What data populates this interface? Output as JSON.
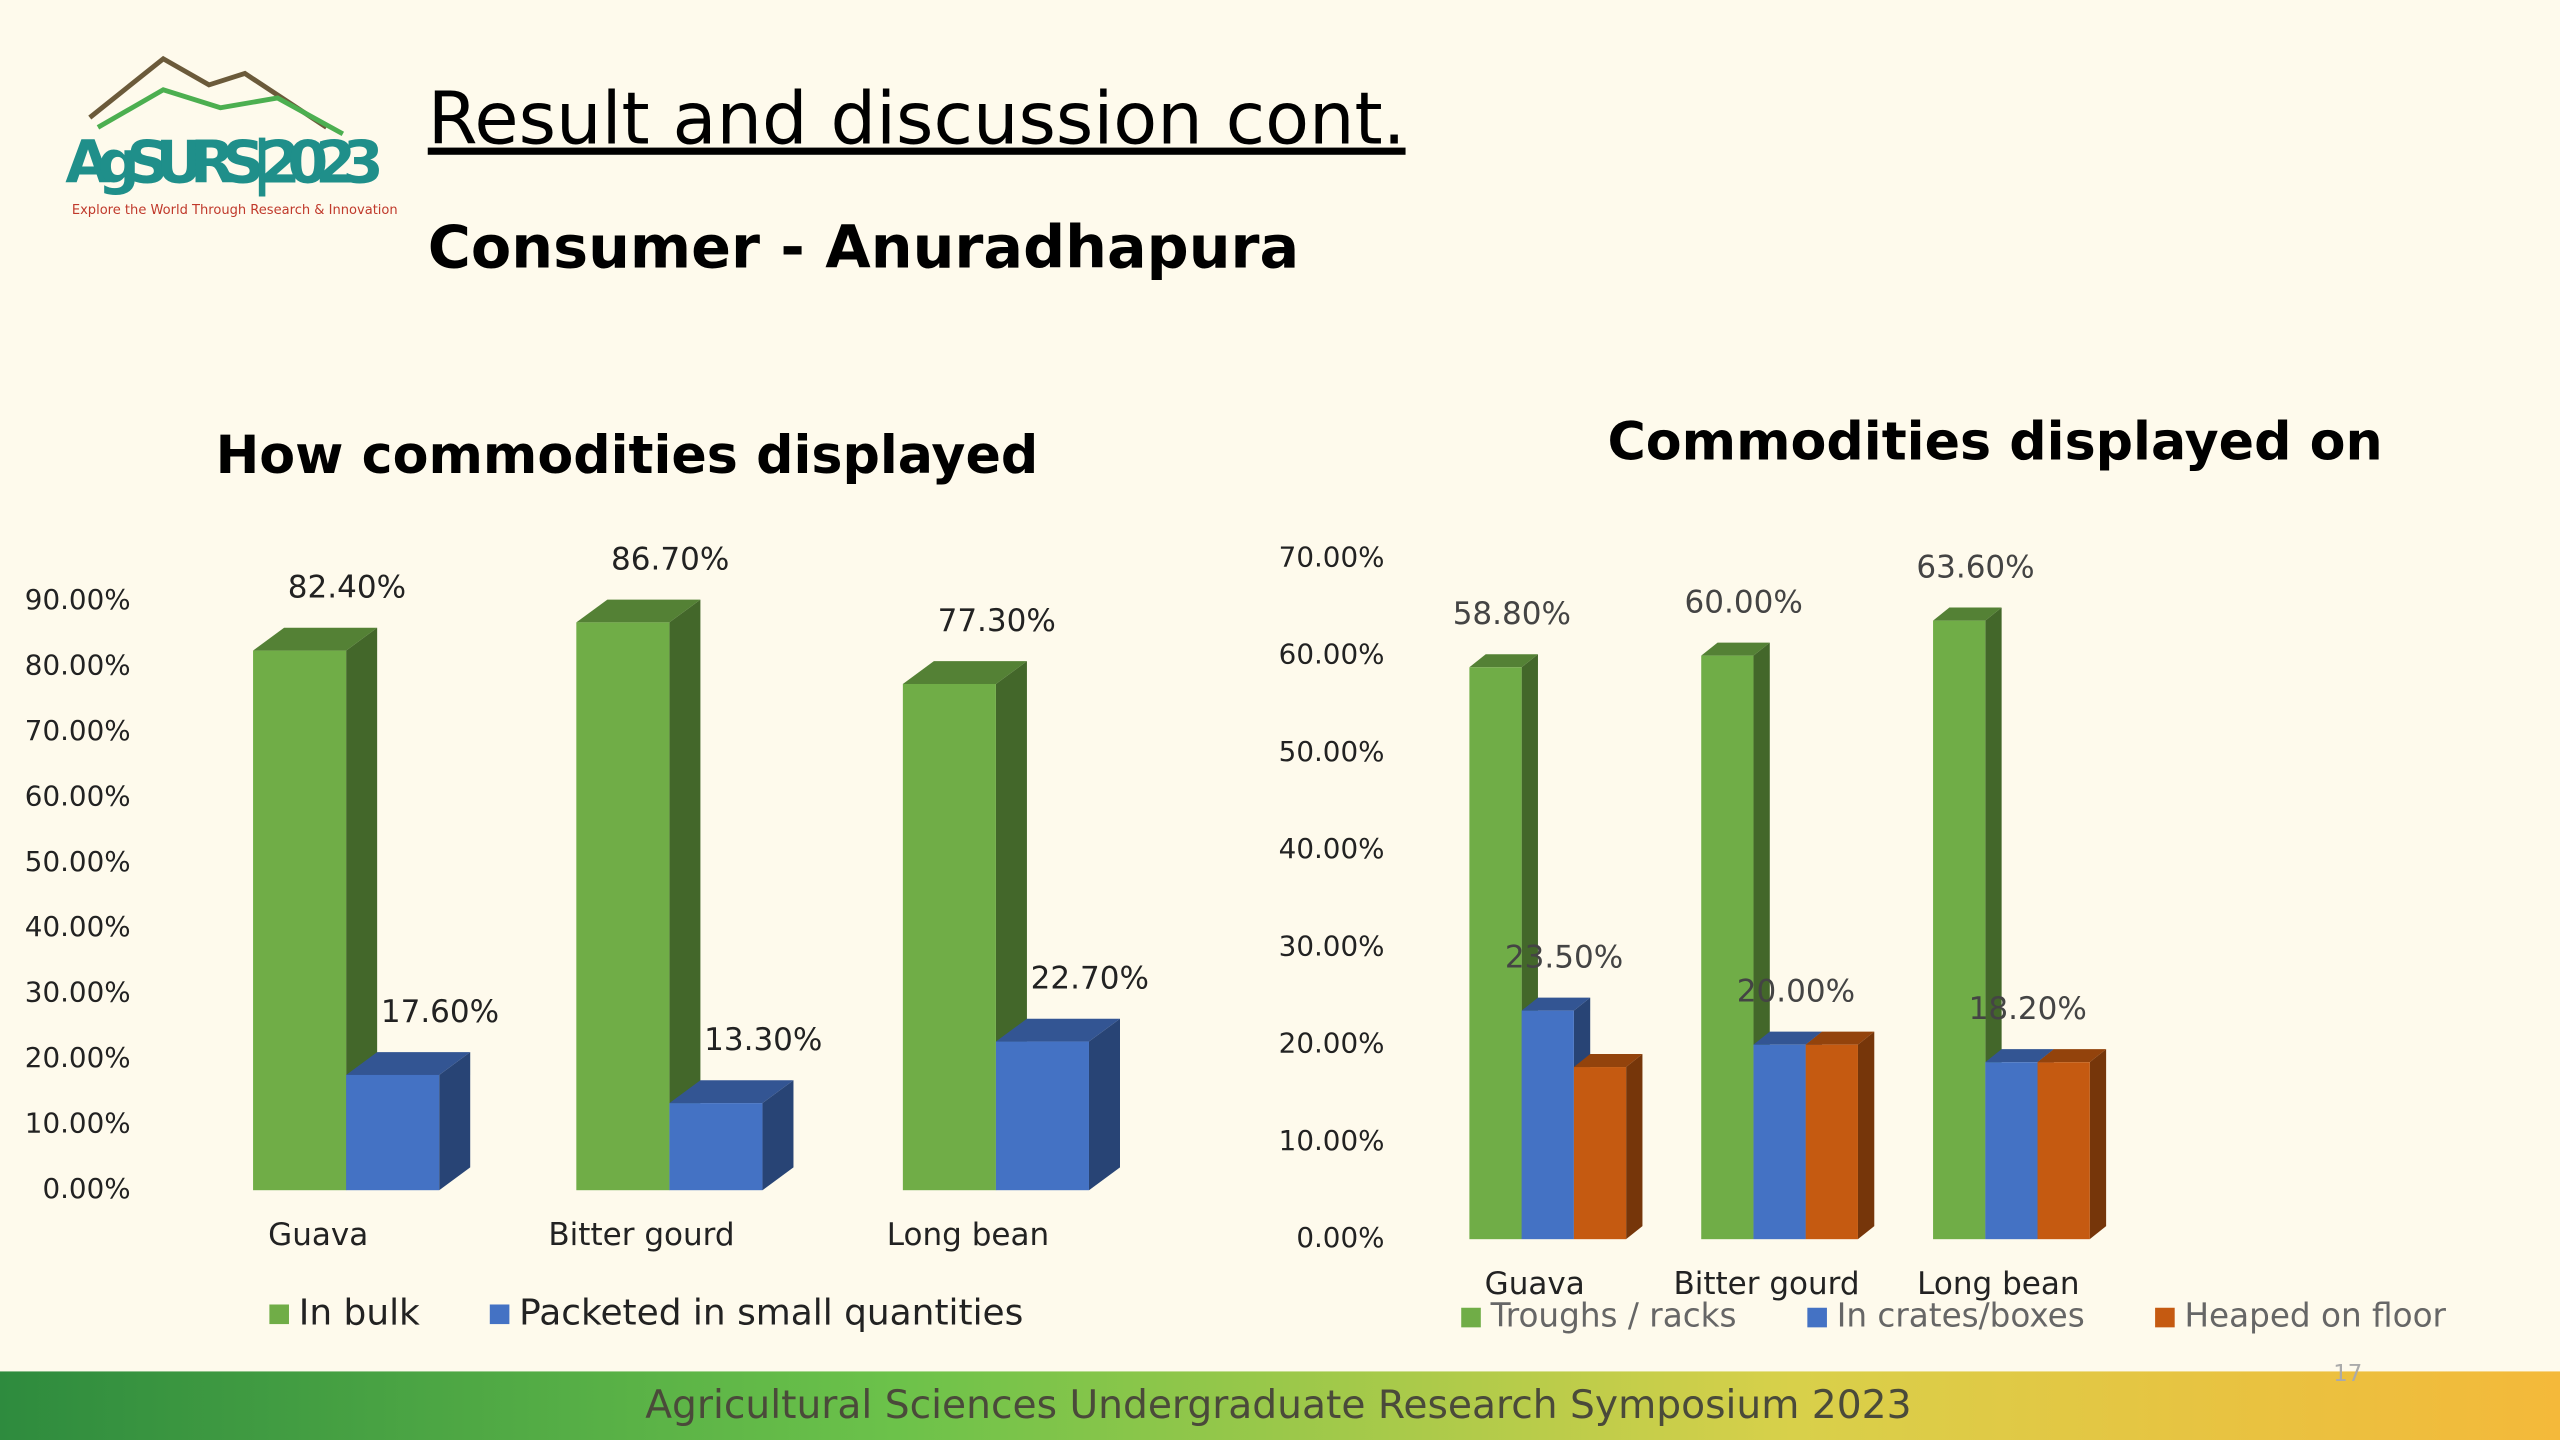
{
  "header": {
    "logo": "AgSURS|2023",
    "logo_tagline": "Explore the World Through Research & Innovation",
    "title": "Result and discussion cont.",
    "subtitle": "Consumer - Anuradhapura"
  },
  "chart_data": [
    {
      "type": "bar3d",
      "title": "How commodities displayed",
      "categories": [
        "Guava",
        "Bitter gourd",
        "Long bean"
      ],
      "series": [
        {
          "name": "In bulk",
          "color": "#70ad47",
          "values": [
            82.4,
            86.7,
            77.3
          ],
          "value_labels": [
            "82.40%",
            "86.70%",
            "77.30%"
          ]
        },
        {
          "name": "Packeted in small quantities",
          "color": "#4472c4",
          "values": [
            17.6,
            13.3,
            22.7
          ],
          "value_labels": [
            "17.60%",
            "13.30%",
            "22.70%"
          ]
        }
      ],
      "ylim": [
        0,
        90
      ],
      "yticks": [
        {
          "value": 0,
          "label": "0.00%"
        },
        {
          "value": 10,
          "label": "10.00%"
        },
        {
          "value": 20,
          "label": "20.00%"
        },
        {
          "value": 30,
          "label": "30.00%"
        },
        {
          "value": 40,
          "label": "40.00%"
        },
        {
          "value": 50,
          "label": "50.00%"
        },
        {
          "value": 60,
          "label": "60.00%"
        },
        {
          "value": 70,
          "label": "70.00%"
        },
        {
          "value": 80,
          "label": "80.00%"
        },
        {
          "value": 90,
          "label": "90.00%"
        }
      ],
      "legend": "bottom"
    },
    {
      "type": "bar3d",
      "title": "Commodities displayed on",
      "categories": [
        "Guava",
        "Bitter gourd",
        "Long bean"
      ],
      "series": [
        {
          "name": "Troughs / racks",
          "color": "#70ad47",
          "values": [
            58.8,
            60,
            63.6
          ],
          "value_labels": [
            "58.80%",
            "60.00%",
            "63.60%"
          ]
        },
        {
          "name": "In crates/boxes",
          "color": "#4472c4",
          "values": [
            23.5,
            20,
            18.2
          ],
          "value_labels": [
            "23.50%",
            "20.00%",
            "18.20%"
          ]
        },
        {
          "name": "Heaped on floor",
          "color": "#c55a11",
          "values": [
            17.7,
            20,
            18.2
          ]
        }
      ],
      "ylim": [
        0,
        70
      ],
      "yticks": [
        {
          "value": 0,
          "label": "0.00%"
        },
        {
          "value": 10,
          "label": "10.00%"
        },
        {
          "value": 20,
          "label": "20.00%"
        },
        {
          "value": 30,
          "label": "30.00%"
        },
        {
          "value": 40,
          "label": "40.00%"
        },
        {
          "value": 50,
          "label": "50.00%"
        },
        {
          "value": 60,
          "label": "60.00%"
        },
        {
          "value": 70,
          "label": "70.00%"
        }
      ],
      "legend": "bottom"
    }
  ],
  "footer": {
    "text": "Agricultural Sciences Undergraduate Research Symposium 2023",
    "page_number": "17"
  }
}
